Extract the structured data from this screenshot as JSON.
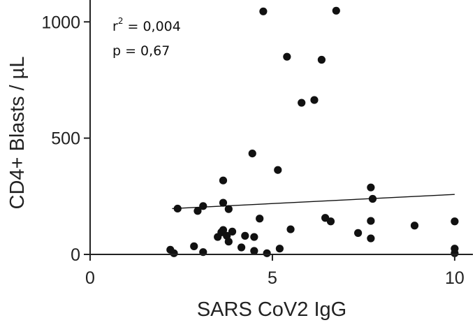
{
  "chart_data": {
    "type": "scatter",
    "xlabel": "SARS CoV2 IgG",
    "ylabel": "CD4+ Blasts / µL",
    "xlim": [
      0,
      10.5
    ],
    "ylim": [
      0,
      1100
    ],
    "xticks": [
      0,
      5,
      10
    ],
    "yticks": [
      0,
      500,
      1000
    ],
    "grid": false,
    "annotations": {
      "r_label": "r",
      "r_sup": "2",
      "r_value": " = 0,004",
      "p_text": "p = 0,67"
    },
    "fit_line": {
      "x": [
        2.25,
        10.0
      ],
      "y": [
        197,
        258
      ]
    },
    "points": [
      {
        "x": 2.2,
        "y": 20
      },
      {
        "x": 2.3,
        "y": 5
      },
      {
        "x": 2.4,
        "y": 197
      },
      {
        "x": 2.85,
        "y": 35
      },
      {
        "x": 2.95,
        "y": 187
      },
      {
        "x": 3.1,
        "y": 10
      },
      {
        "x": 3.1,
        "y": 208
      },
      {
        "x": 3.5,
        "y": 75
      },
      {
        "x": 3.6,
        "y": 95
      },
      {
        "x": 3.65,
        "y": 105
      },
      {
        "x": 3.65,
        "y": 222
      },
      {
        "x": 3.65,
        "y": 318
      },
      {
        "x": 3.75,
        "y": 80
      },
      {
        "x": 3.8,
        "y": 55
      },
      {
        "x": 3.8,
        "y": 195
      },
      {
        "x": 3.9,
        "y": 98
      },
      {
        "x": 4.15,
        "y": 30
      },
      {
        "x": 4.25,
        "y": 80
      },
      {
        "x": 4.45,
        "y": 434
      },
      {
        "x": 4.5,
        "y": 15
      },
      {
        "x": 4.5,
        "y": 75
      },
      {
        "x": 4.65,
        "y": 154
      },
      {
        "x": 4.75,
        "y": 1045
      },
      {
        "x": 4.85,
        "y": 5
      },
      {
        "x": 5.15,
        "y": 363
      },
      {
        "x": 5.2,
        "y": 25
      },
      {
        "x": 5.4,
        "y": 850
      },
      {
        "x": 5.5,
        "y": 108
      },
      {
        "x": 5.8,
        "y": 652
      },
      {
        "x": 6.15,
        "y": 664
      },
      {
        "x": 6.35,
        "y": 837
      },
      {
        "x": 6.45,
        "y": 157
      },
      {
        "x": 6.6,
        "y": 142
      },
      {
        "x": 6.75,
        "y": 1048
      },
      {
        "x": 7.35,
        "y": 92
      },
      {
        "x": 7.7,
        "y": 69
      },
      {
        "x": 7.7,
        "y": 144
      },
      {
        "x": 7.7,
        "y": 288
      },
      {
        "x": 7.75,
        "y": 239
      },
      {
        "x": 8.9,
        "y": 124
      },
      {
        "x": 10.0,
        "y": 5
      },
      {
        "x": 10.0,
        "y": 25
      },
      {
        "x": 10.0,
        "y": 142
      }
    ]
  }
}
